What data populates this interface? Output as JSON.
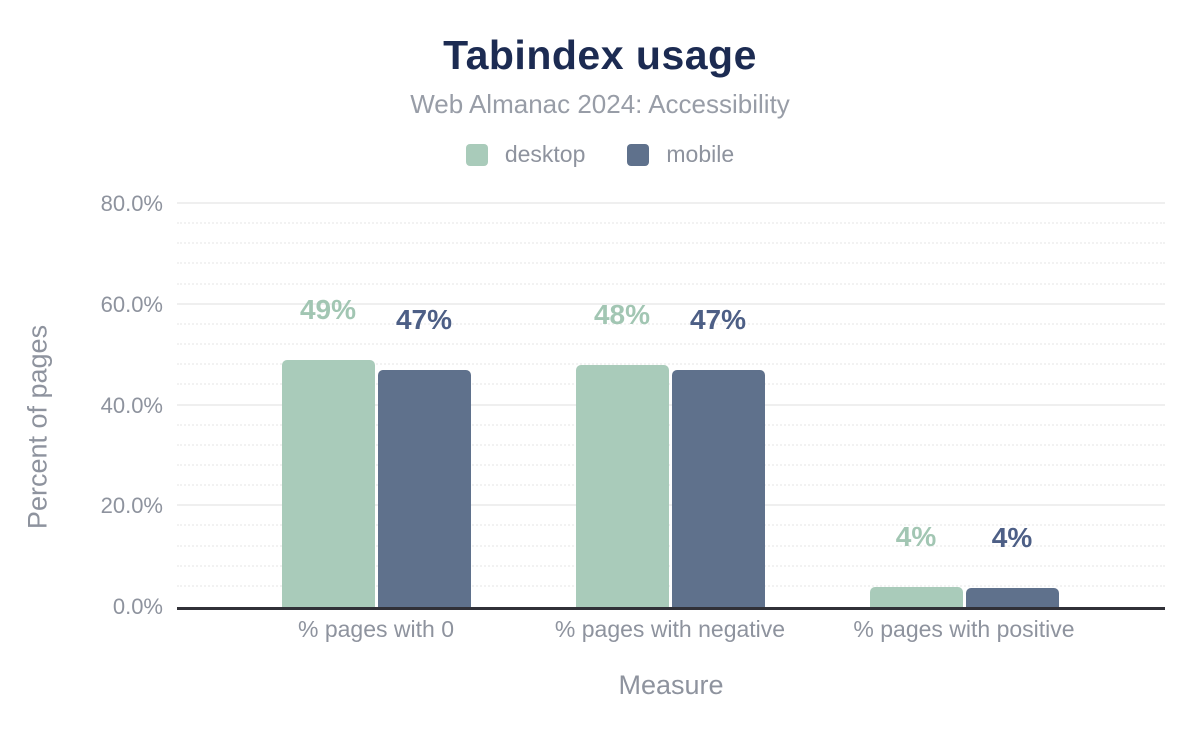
{
  "chart_data": {
    "type": "bar",
    "title": "Tabindex usage",
    "subtitle": "Web Almanac 2024: Accessibility",
    "categories": [
      "% pages with 0",
      "% pages with negative",
      "% pages with positive"
    ],
    "series": [
      {
        "name": "desktop",
        "color": "#a9cbba",
        "label_color": "#a2c6b3",
        "values": [
          49,
          48,
          4
        ],
        "labels": [
          "49%",
          "48%",
          "4%"
        ]
      },
      {
        "name": "mobile",
        "color": "#5f718c",
        "label_color": "#4d5f86",
        "values": [
          47,
          47,
          3.7
        ],
        "labels": [
          "47%",
          "47%",
          "4%"
        ]
      }
    ],
    "xlabel": "Measure",
    "ylabel": "Percent of pages",
    "ylim": [
      0,
      80
    ],
    "yticks": [
      {
        "value": 0,
        "label": "0.0%"
      },
      {
        "value": 20,
        "label": "20.0%"
      },
      {
        "value": 40,
        "label": "40.0%"
      },
      {
        "value": 60,
        "label": "60.0%"
      },
      {
        "value": 80,
        "label": "80.0%"
      }
    ],
    "grid": {
      "major_step": 20,
      "minor_step": 4
    },
    "legend_position": "top",
    "colors": {
      "title": "#1c2b52",
      "muted_text": "#8e939e",
      "subtitle_text": "#989da7",
      "axis_line": "#313138"
    }
  }
}
